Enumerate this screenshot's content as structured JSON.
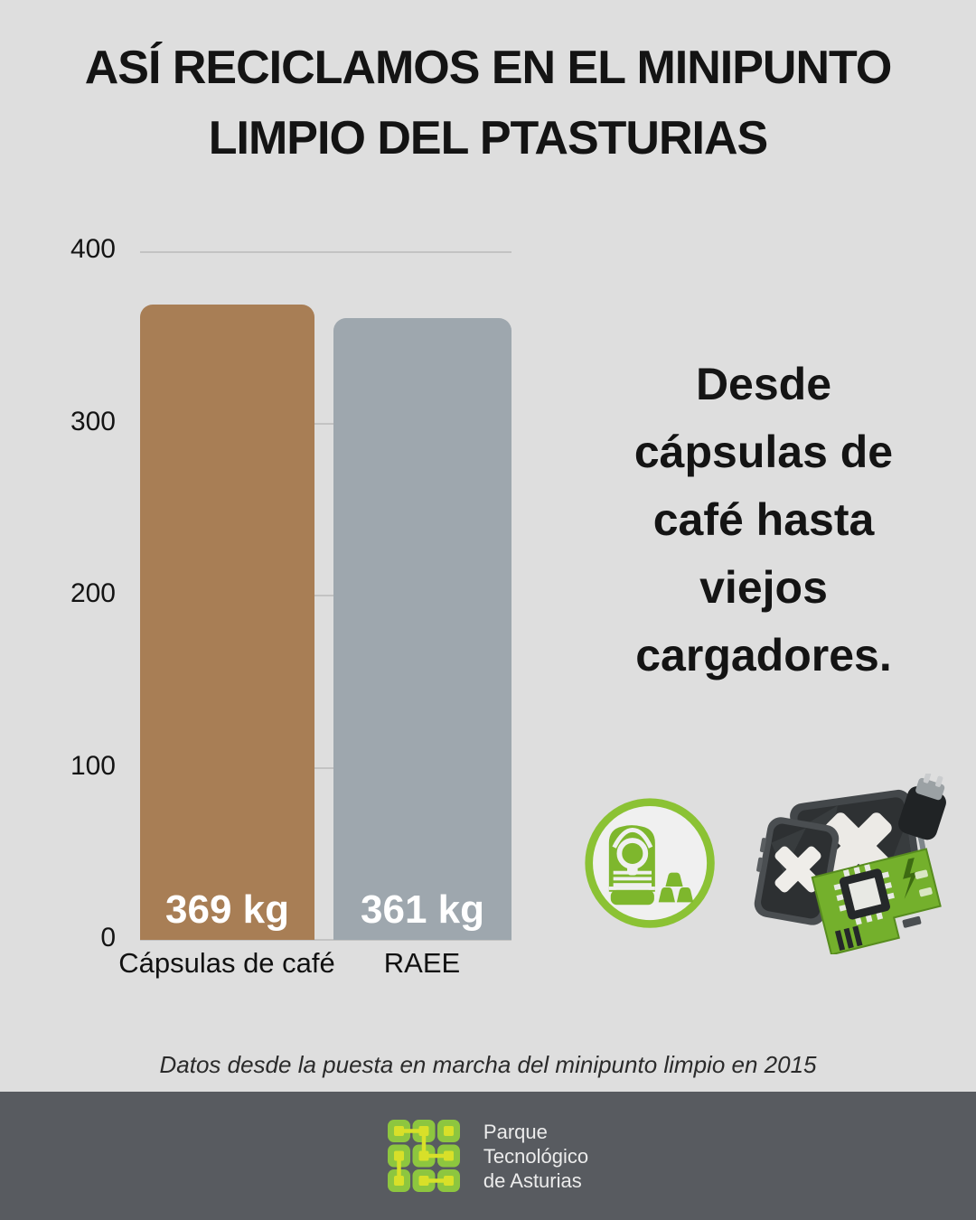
{
  "title": {
    "line1": "ASÍ RECICLAMOS EN EL MINIPUNTO",
    "line2": "LIMPIO DEL PTASTURIAS"
  },
  "chart_data": {
    "type": "bar",
    "categories": [
      "Cápsulas de café",
      "RAEE"
    ],
    "values": [
      369,
      361
    ],
    "value_labels": [
      "369 kg",
      "361 kg"
    ],
    "bar_colors": [
      "#a87e55",
      "#9ea7ae"
    ],
    "unit": "kg",
    "ylim": [
      0,
      400
    ],
    "yticks": [
      400,
      300,
      200,
      100,
      0
    ],
    "grid": true,
    "legend": false
  },
  "callout": {
    "full_text": "Desde cápsulas de café hasta viejos cargadores.",
    "lines": [
      "Desde",
      "cápsulas de",
      "café hasta",
      "viejos",
      "cargadores."
    ]
  },
  "icons": {
    "badge": "coffee-capsule-machine",
    "illustration": "discarded-electronics-ewaste"
  },
  "footnote": "Datos desde la puesta en marcha del minipunto limpio en 2015",
  "footer": {
    "org_name": "Parque Tecnológico de Asturias",
    "org_lines": [
      "Parque",
      "Tecnológico",
      "de Asturias"
    ]
  },
  "colors": {
    "background": "#dedede",
    "bar_capsulas": "#a87e55",
    "bar_raee": "#9ea7ae",
    "gridline": "#c3c3c3",
    "accent_green": "#8bc234",
    "logo_green": "#8dc63f",
    "logo_inner_green": "#d8e029",
    "footer_bg": "#585b60"
  }
}
